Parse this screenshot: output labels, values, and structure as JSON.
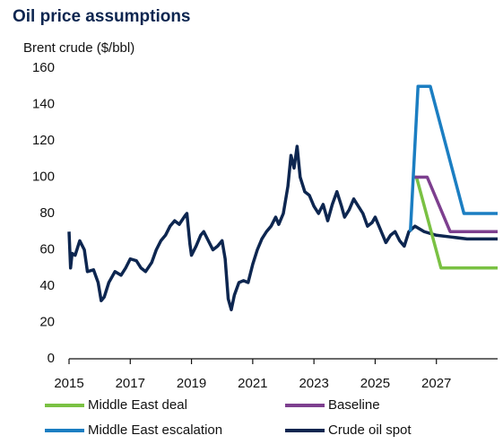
{
  "chart_data": {
    "type": "line",
    "title": "Oil price assumptions",
    "y_label": "Brent crude ($/bbl)",
    "xlim": [
      2015,
      2029
    ],
    "xticks": [
      2015,
      2017,
      2019,
      2021,
      2023,
      2025,
      2027
    ],
    "ylim": [
      0,
      160
    ],
    "yticks": [
      0,
      20,
      40,
      60,
      80,
      100,
      120,
      140,
      160
    ],
    "series": [
      {
        "name": "Middle East deal",
        "color": "#7ac143",
        "x": [
          2026.25,
          2026.35,
          2027.15,
          2029
        ],
        "values": [
          100,
          100,
          50,
          50
        ]
      },
      {
        "name": "Baseline",
        "color": "#7d3f8f",
        "x": [
          2026.25,
          2026.7,
          2027.45,
          2029
        ],
        "values": [
          100,
          100,
          70,
          70
        ]
      },
      {
        "name": "Middle East escalation",
        "color": "#1b7ec2",
        "x": [
          2026.15,
          2026.4,
          2026.8,
          2027.9,
          2029
        ],
        "values": [
          70,
          150,
          150,
          80,
          80
        ]
      },
      {
        "name": "Crude oil spot",
        "color": "#0d2650",
        "x": [
          2015.0,
          2015.05,
          2015.1,
          2015.2,
          2015.35,
          2015.5,
          2015.6,
          2015.8,
          2015.95,
          2016.05,
          2016.15,
          2016.3,
          2016.5,
          2016.7,
          2016.85,
          2017.0,
          2017.2,
          2017.35,
          2017.5,
          2017.7,
          2017.85,
          2018.0,
          2018.15,
          2018.3,
          2018.45,
          2018.6,
          2018.8,
          2018.85,
          2018.95,
          2019.0,
          2019.15,
          2019.3,
          2019.4,
          2019.55,
          2019.7,
          2019.85,
          2020.0,
          2020.1,
          2020.2,
          2020.3,
          2020.4,
          2020.55,
          2020.7,
          2020.85,
          2021.0,
          2021.15,
          2021.3,
          2021.45,
          2021.6,
          2021.75,
          2021.85,
          2022.0,
          2022.15,
          2022.25,
          2022.35,
          2022.45,
          2022.55,
          2022.7,
          2022.85,
          2023.0,
          2023.15,
          2023.3,
          2023.45,
          2023.6,
          2023.75,
          2023.9,
          2024.0,
          2024.15,
          2024.3,
          2024.45,
          2024.6,
          2024.75,
          2024.9,
          2025.0,
          2025.2,
          2025.35,
          2025.5,
          2025.65,
          2025.8,
          2025.95,
          2026.1,
          2026.3,
          2026.6,
          2027.0,
          2027.5,
          2028.0,
          2029.0
        ],
        "values": [
          70,
          50,
          58,
          57,
          65,
          60,
          48,
          49,
          42,
          32,
          34,
          42,
          48,
          46,
          50,
          55,
          54,
          50,
          48,
          53,
          60,
          65,
          68,
          73,
          76,
          74,
          79,
          80,
          63,
          57,
          62,
          68,
          70,
          65,
          60,
          62,
          65,
          55,
          33,
          27,
          35,
          42,
          43,
          42,
          52,
          60,
          66,
          70,
          73,
          78,
          74,
          80,
          95,
          112,
          105,
          117,
          100,
          92,
          90,
          84,
          80,
          85,
          76,
          85,
          92,
          84,
          78,
          82,
          88,
          84,
          80,
          73,
          75,
          78,
          70,
          64,
          68,
          70,
          65,
          62,
          70,
          73,
          70,
          68,
          67,
          66,
          66
        ]
      }
    ]
  }
}
